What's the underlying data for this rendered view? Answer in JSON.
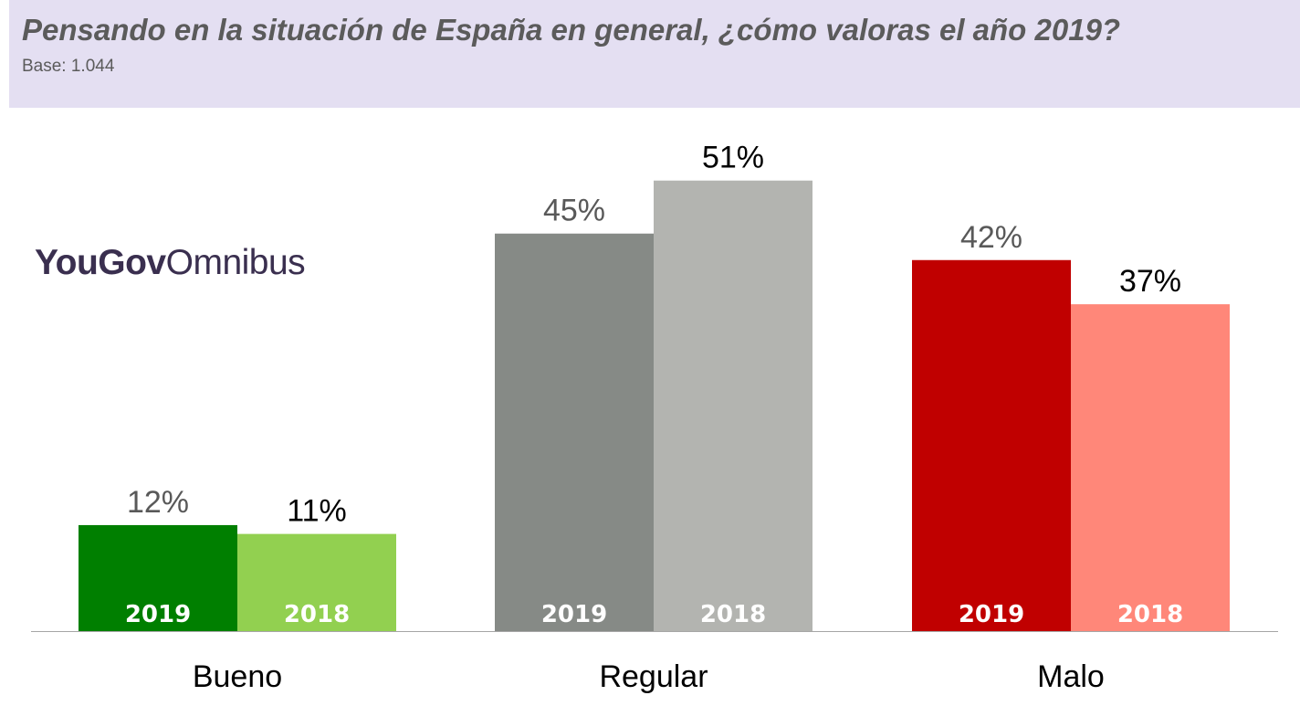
{
  "header": {
    "title": "Pensando en la situación de España en general, ¿cómo valoras el año 2019?",
    "subtitle": "Base: 1.044"
  },
  "logo": {
    "part1": "YouGov",
    "part2": "Omnibus"
  },
  "chart_data": {
    "type": "bar",
    "title": "Pensando en la situación de España en general, ¿cómo valoras el año 2019?",
    "subtitle": "Base: 1.044",
    "categories": [
      "Bueno",
      "Regular",
      "Malo"
    ],
    "series": [
      {
        "name": "2019",
        "values": [
          12,
          45,
          42
        ],
        "labels": [
          "12%",
          "45%",
          "42%"
        ]
      },
      {
        "name": "2018",
        "values": [
          11,
          51,
          37
        ],
        "labels": [
          "11%",
          "51%",
          "37%"
        ]
      }
    ],
    "colors": [
      {
        "2019": "#007f00",
        "2018": "#92d050"
      },
      {
        "2019": "#868a86",
        "2018": "#b3b4b0"
      },
      {
        "2019": "#c00000",
        "2018": "#ff8779"
      }
    ],
    "value_label_colors": {
      "2019": "#595959",
      "2018": "#000000"
    },
    "ylim": [
      0,
      58
    ],
    "grid": false,
    "legend": "none",
    "xlabel": "",
    "ylabel": ""
  }
}
